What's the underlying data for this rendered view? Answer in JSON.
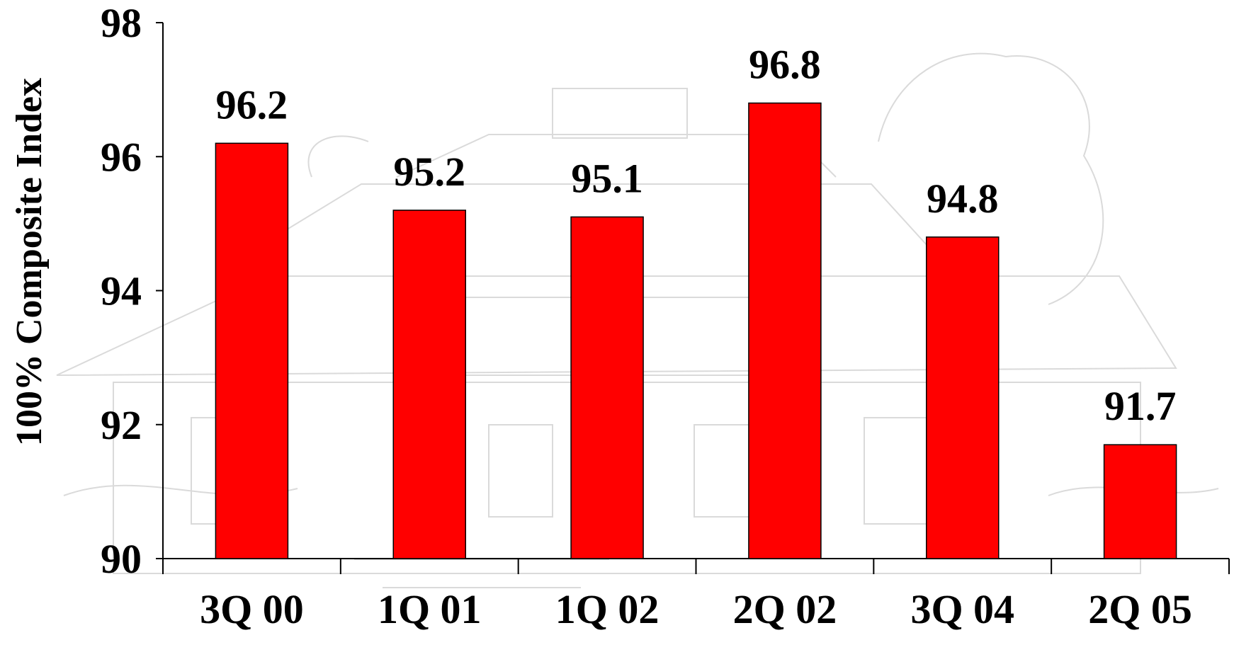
{
  "chart_data": {
    "type": "bar",
    "title": "",
    "xlabel": "",
    "ylabel": "100% Composite Index",
    "categories": [
      "3Q 00",
      "1Q 01",
      "1Q 02",
      "2Q 02",
      "3Q 04",
      "2Q 05"
    ],
    "series": [
      {
        "values": [
          96.2,
          95.2,
          95.1,
          96.8,
          94.8,
          91.7
        ]
      }
    ],
    "ylim": [
      90,
      98
    ],
    "yticks": [
      90,
      92,
      94,
      96,
      98
    ],
    "data_labels": [
      "96.2",
      "95.2",
      "95.1",
      "96.8",
      "94.8",
      "91.7"
    ],
    "bar_color": "#ff0000",
    "grid": false,
    "legend": "none",
    "background": "faint line-drawing of a house as watermark"
  }
}
